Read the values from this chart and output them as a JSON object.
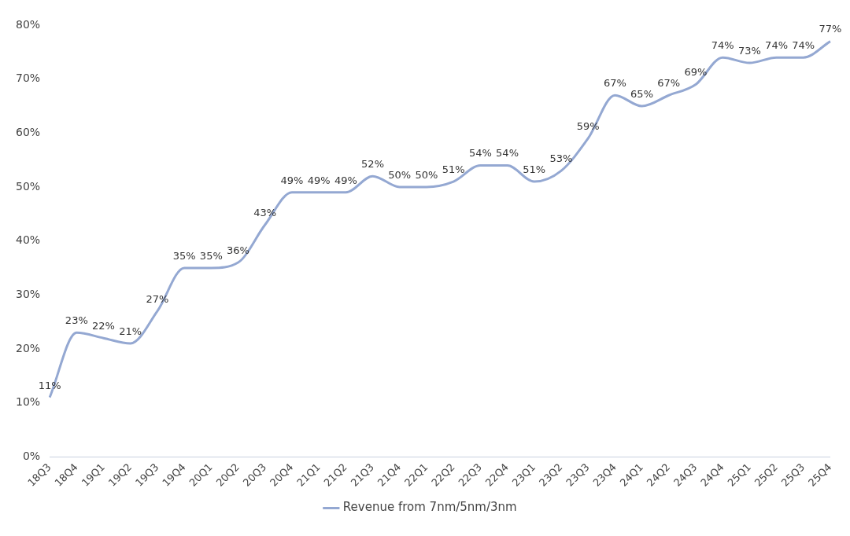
{
  "chart_data": {
    "type": "line",
    "categories": [
      "18Q3",
      "18Q4",
      "19Q1",
      "19Q2",
      "19Q3",
      "19Q4",
      "20Q1",
      "20Q2",
      "20Q3",
      "20Q4",
      "21Q1",
      "21Q2",
      "21Q3",
      "21Q4",
      "22Q1",
      "22Q2",
      "22Q3",
      "22Q4",
      "23Q1",
      "23Q2",
      "23Q3",
      "23Q4",
      "24Q1",
      "24Q2",
      "24Q3",
      "24Q4",
      "25Q1",
      "25Q2",
      "25Q3",
      "25Q4"
    ],
    "series": [
      {
        "name": "Revenue from 7nm/5nm/3nm",
        "color": "#94a8d2",
        "values": [
          11,
          23,
          22,
          21,
          27,
          35,
          35,
          36,
          43,
          49,
          49,
          49,
          52,
          50,
          50,
          51,
          54,
          54,
          51,
          53,
          59,
          67,
          65,
          67,
          69,
          74,
          73,
          74,
          74,
          77
        ],
        "value_labels": [
          "11%",
          "23%",
          "22%",
          "21%",
          "27%",
          "35%",
          "35%",
          "36%",
          "43%",
          "49%",
          "49%",
          "49%",
          "52%",
          "50%",
          "50%",
          "51%",
          "54%",
          "54%",
          "51%",
          "53%",
          "59%",
          "67%",
          "65%",
          "67%",
          "69%",
          "74%",
          "73%",
          "74%",
          "74%",
          "77%"
        ]
      }
    ],
    "ylim": [
      0,
      80
    ],
    "yticks": [
      {
        "value": 0,
        "label": "0%"
      },
      {
        "value": 10,
        "label": "10%"
      },
      {
        "value": 20,
        "label": "20%"
      },
      {
        "value": 30,
        "label": "30%"
      },
      {
        "value": 40,
        "label": "40%"
      },
      {
        "value": 50,
        "label": "50%"
      },
      {
        "value": 60,
        "label": "60%"
      },
      {
        "value": 70,
        "label": "70%"
      },
      {
        "value": 80,
        "label": "80%"
      }
    ],
    "grid": false,
    "legend": "bottom",
    "marker": "none",
    "line_style": "solid"
  }
}
